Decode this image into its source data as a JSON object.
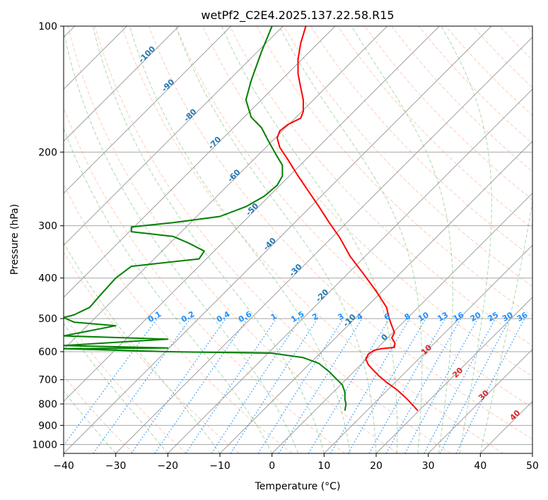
{
  "chart_data": {
    "type": "line",
    "title": "wetPf2_C2E4.2025.137.22.58.R15",
    "xlabel": "Temperature (°C)",
    "ylabel": "Pressure (hPa)",
    "xlim": [
      -40,
      50
    ],
    "ylim": [
      1050,
      100
    ],
    "y_scale": "log",
    "x_ticks": [
      -40,
      -30,
      -20,
      -10,
      0,
      10,
      20,
      30,
      40,
      50
    ],
    "y_ticks": [
      100,
      200,
      300,
      400,
      500,
      600,
      700,
      800,
      900,
      1000
    ],
    "grid": true,
    "skew_degrees": 45,
    "colors": {
      "temperature": "#ff0000",
      "dewpoint": "#008000",
      "isotherm": "#a0a0a0",
      "dry_adiabat": "#ff7f50",
      "moist_adiabat": "#2ca02c",
      "mixing_ratio": "#1e90ff",
      "isotherm_label": "#1f77b4",
      "adiabat_label": "#d62728",
      "mixing_ratio_label": "#1e90ff"
    },
    "isotherm_labels": [
      {
        "t": -100,
        "p": 118
      },
      {
        "t": -90,
        "p": 140
      },
      {
        "t": -80,
        "p": 165
      },
      {
        "t": -70,
        "p": 192
      },
      {
        "t": -60,
        "p": 230
      },
      {
        "t": -50,
        "p": 277
      },
      {
        "t": -40,
        "p": 335
      },
      {
        "t": -30,
        "p": 387
      },
      {
        "t": -20,
        "p": 445
      },
      {
        "t": -10,
        "p": 510
      },
      {
        "t": 0,
        "p": 560
      }
    ],
    "mixing_ratio_labels": [
      "0.1",
      "0.2",
      "0.4",
      "0.6",
      "1",
      "1.5",
      "2",
      "3",
      "4",
      "6",
      "8",
      "10",
      "13",
      "16",
      "20",
      "25",
      "30",
      "36"
    ],
    "adiabat_labels": [
      {
        "label": "10",
        "temp": 30,
        "p": 600
      },
      {
        "label": "20",
        "temp": 36,
        "p": 680
      },
      {
        "label": "30",
        "temp": 41,
        "p": 770
      },
      {
        "label": "40",
        "temp": 47,
        "p": 860
      }
    ],
    "series": [
      {
        "key": "temperature",
        "x": [
          28,
          26,
          24,
          22,
          20.5,
          19.5,
          18.5,
          18,
          18.5,
          19.5,
          21,
          23.5,
          23.6,
          23,
          23.5,
          23,
          22.5,
          22,
          20,
          17.5,
          15,
          13,
          11,
          9,
          7,
          5,
          3,
          1.5,
          1,
          1.5,
          3,
          5.5,
          6,
          6,
          5.5,
          5,
          5,
          5.5,
          6.5
        ],
        "y": [
          830,
          780,
          740,
          710,
          685,
          665,
          645,
          625,
          608,
          596,
          590,
          586,
          572,
          556,
          540,
          520,
          500,
          470,
          430,
          390,
          355,
          320,
          295,
          270,
          248,
          228,
          208,
          195,
          185,
          178,
          172,
          166,
          160,
          150,
          140,
          130,
          120,
          110,
          100
        ]
      },
      {
        "key": "dewpoint",
        "x": [
          14,
          14.2,
          14,
          14,
          13.5,
          12.5,
          12,
          11,
          9,
          6,
          0,
          -20,
          -30,
          -40,
          -20,
          -40,
          -20,
          -40,
          -30,
          -38,
          -40,
          -38,
          -35,
          -33,
          -30,
          -27,
          -14,
          -13,
          -16,
          -19,
          -27,
          -27,
          -19,
          -10,
          -5,
          -1.5,
          1,
          2,
          2,
          1,
          0,
          -1,
          -2,
          -4,
          -5,
          -4,
          -2,
          0
        ],
        "y": [
          830,
          800,
          780,
          750,
          720,
          700,
          690,
          670,
          640,
          620,
          605,
          600,
          595,
          590,
          588,
          580,
          560,
          550,
          520,
          510,
          497,
          490,
          470,
          440,
          400,
          375,
          360,
          345,
          330,
          318,
          310,
          302,
          295,
          285,
          270,
          255,
          240,
          228,
          215,
          205,
          195,
          185,
          175,
          165,
          150,
          135,
          115,
          100
        ]
      }
    ]
  }
}
